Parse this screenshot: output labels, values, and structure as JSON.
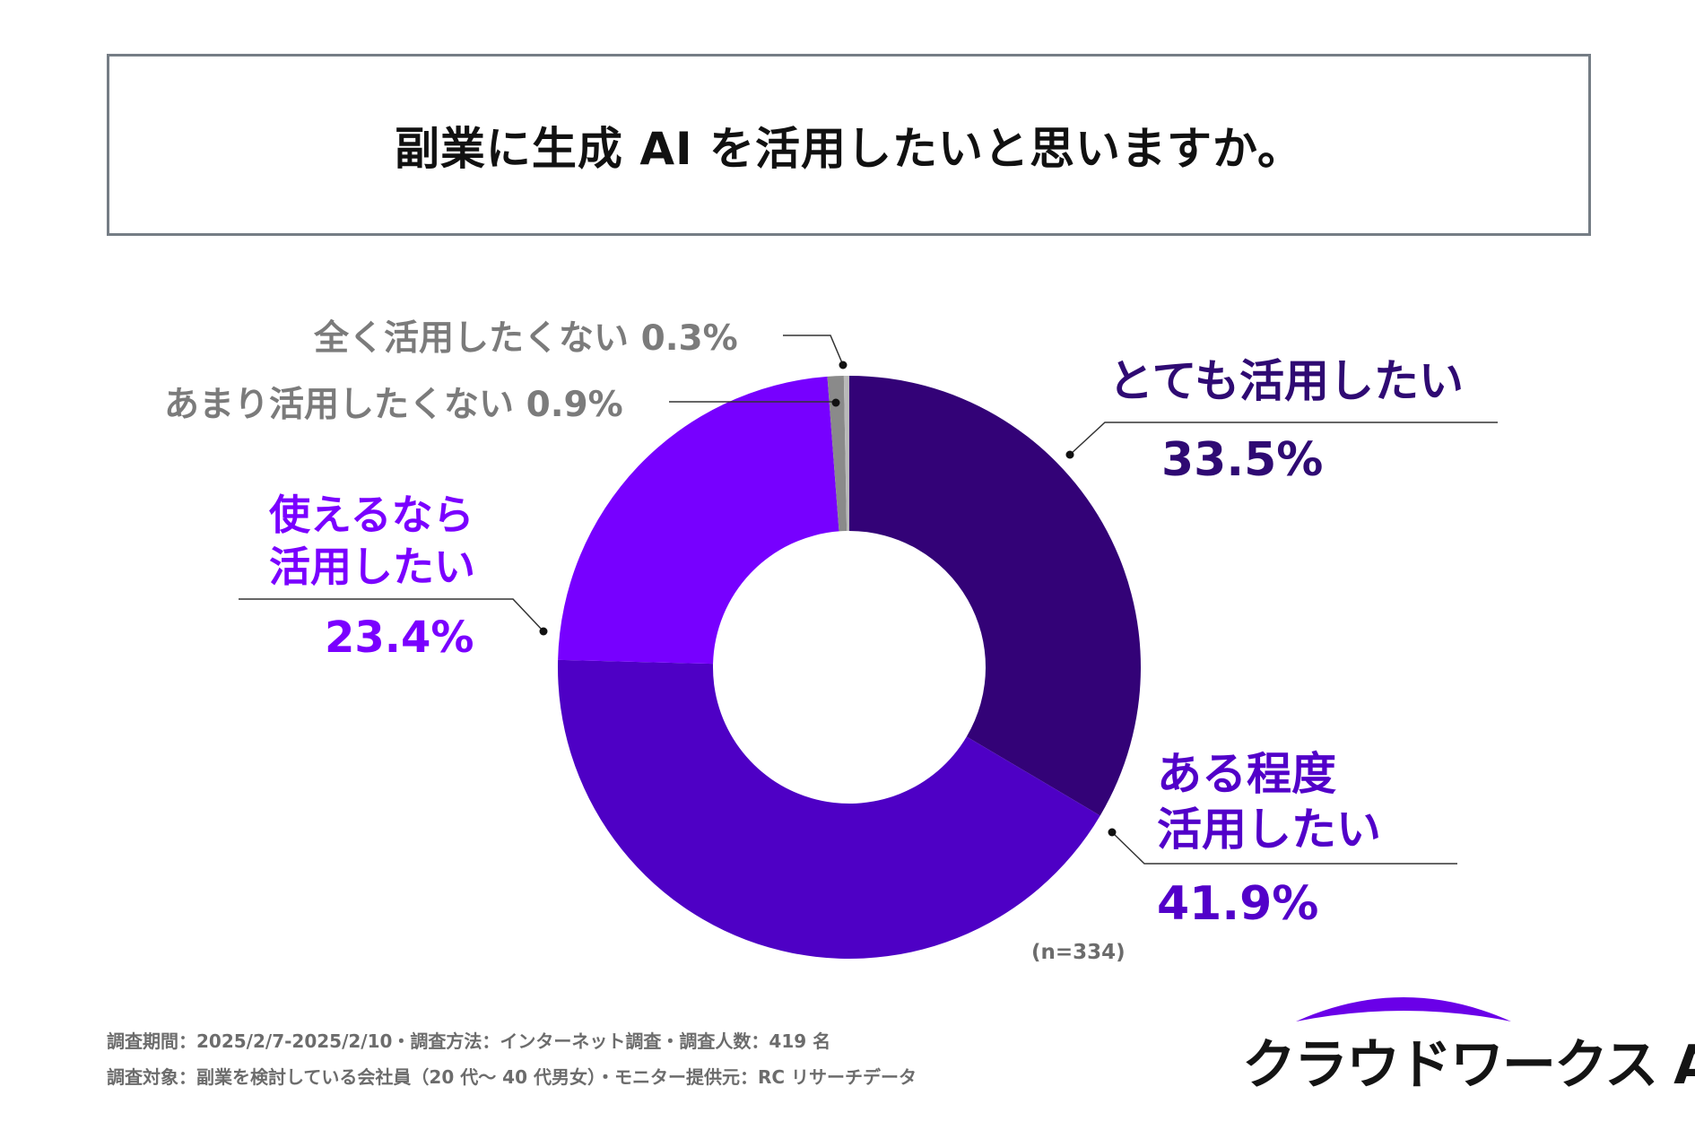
{
  "title": "副業に生成 AI を活用したいと思いますか。",
  "chart_data": {
    "type": "pie",
    "donut": true,
    "categories": [
      "とても活用したい",
      "ある程度活用したい",
      "使えるなら活用したい",
      "あまり活用したくない",
      "全く活用したくない"
    ],
    "values": [
      33.5,
      41.9,
      23.4,
      0.9,
      0.3
    ],
    "value_labels": [
      "33.5%",
      "41.9%",
      "23.4%",
      "0.9%",
      "0.3%"
    ],
    "sample_note": "(n=334)",
    "colors": [
      "#330277",
      "#4e00c5",
      "#7700ff",
      "#8a8a8a",
      "#b9b9b9"
    ]
  },
  "labels": {
    "very_much": {
      "line1": "とても活用したい",
      "value": "33.5%"
    },
    "somewhat": {
      "line1": "ある程度",
      "line2": "活用したい",
      "value": "41.9%"
    },
    "if_usable": {
      "line1": "使えるなら",
      "line2": "活用したい",
      "value": "23.4%"
    },
    "not_much": {
      "text": "あまり活用したくない 0.9%"
    },
    "not_at_all": {
      "text": "全く活用したくない 0.3%"
    }
  },
  "footer": {
    "line1": "調査期間：2025/2/7-2025/2/10・調査方法：インターネット調査・調査人数：419 名",
    "line2": "調査対象：副業を検討している会社員（20 代～ 40 代男女）・モニター提供元：RC リサーチデータ"
  },
  "logo": {
    "text": "クラウドワークス AI",
    "arc_color": "#6a00e8"
  }
}
